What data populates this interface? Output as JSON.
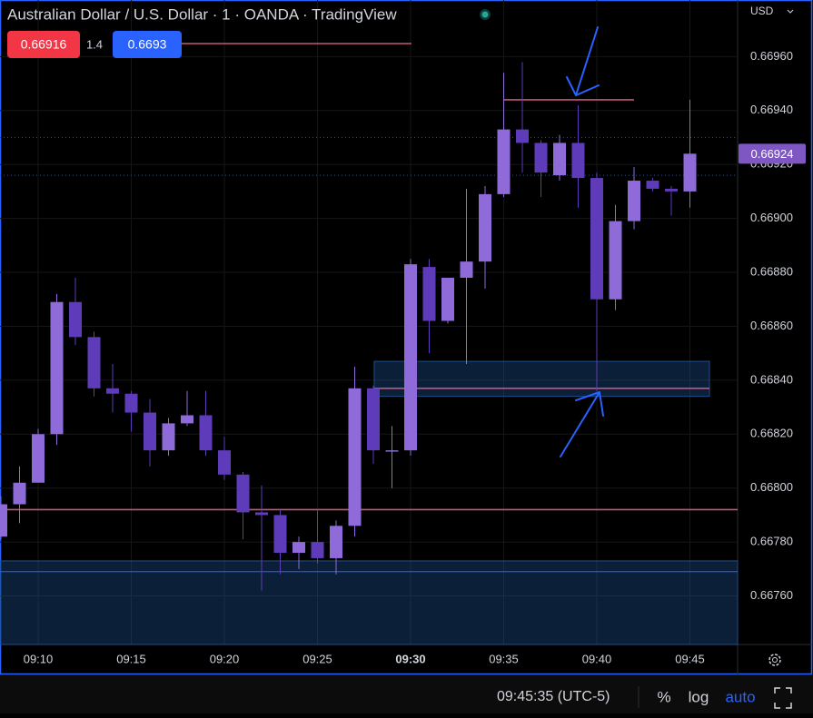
{
  "chart_data": {
    "type": "candlestick",
    "title": "Australian Dollar / U.S. Dollar · 1 · OANDA · TradingView",
    "bid": 0.66916,
    "spread": "1.4",
    "ask": 0.6693,
    "currency": "USD",
    "last": {
      "value": 0.66924,
      "label": "0.66924"
    },
    "categories": [
      "09:08",
      "09:09",
      "09:10",
      "09:11",
      "09:12",
      "09:13",
      "09:14",
      "09:15",
      "09:16",
      "09:17",
      "09:18",
      "09:19",
      "09:20",
      "09:21",
      "09:22",
      "09:23",
      "09:24",
      "09:25",
      "09:26",
      "09:27",
      "09:28",
      "09:29",
      "09:30",
      "09:31",
      "09:32",
      "09:33",
      "09:34",
      "09:35",
      "09:36",
      "09:37",
      "09:38",
      "09:39",
      "09:40",
      "09:41",
      "09:42",
      "09:43",
      "09:44",
      "09:45"
    ],
    "open": [
      0.66782,
      0.66794,
      0.66802,
      0.6682,
      0.66869,
      0.66856,
      0.66837,
      0.66835,
      0.66828,
      0.66814,
      0.66824,
      0.66827,
      0.66814,
      0.66805,
      0.66791,
      0.6679,
      0.66776,
      0.6678,
      0.66774,
      0.66786,
      0.66837,
      0.66814,
      0.66814,
      0.66882,
      0.66862,
      0.66878,
      0.66884,
      0.66909,
      0.66933,
      0.66928,
      0.66916,
      0.66928,
      0.66915,
      0.6687,
      0.66899,
      0.66914,
      0.66911,
      0.6691
    ],
    "high": [
      0.66797,
      0.66808,
      0.66822,
      0.66872,
      0.66878,
      0.66858,
      0.66846,
      0.66836,
      0.66833,
      0.66826,
      0.66836,
      0.66836,
      0.66819,
      0.66806,
      0.66801,
      0.66792,
      0.66782,
      0.66792,
      0.66788,
      0.66845,
      0.66838,
      0.66823,
      0.66885,
      0.66885,
      0.66878,
      0.66911,
      0.66912,
      0.66954,
      0.66958,
      0.66929,
      0.66931,
      0.66942,
      0.66917,
      0.66905,
      0.66919,
      0.66915,
      0.66912,
      0.66944
    ],
    "low": [
      0.66781,
      0.66787,
      0.66802,
      0.66816,
      0.66853,
      0.66834,
      0.66828,
      0.66821,
      0.66808,
      0.66812,
      0.66823,
      0.66812,
      0.66803,
      0.66781,
      0.66762,
      0.66768,
      0.6677,
      0.66772,
      0.66768,
      0.66782,
      0.66809,
      0.668,
      0.66812,
      0.6685,
      0.66861,
      0.66846,
      0.66874,
      0.66908,
      0.66917,
      0.66908,
      0.66914,
      0.66904,
      0.66836,
      0.66866,
      0.66896,
      0.6691,
      0.66901,
      0.66904
    ],
    "close": [
      0.66794,
      0.66802,
      0.6682,
      0.66869,
      0.66856,
      0.66837,
      0.66835,
      0.66828,
      0.66814,
      0.66824,
      0.66827,
      0.66814,
      0.66805,
      0.66791,
      0.6679,
      0.66776,
      0.6678,
      0.66774,
      0.66786,
      0.66837,
      0.66814,
      0.66814,
      0.66883,
      0.66862,
      0.66878,
      0.66884,
      0.66909,
      0.66933,
      0.66928,
      0.66917,
      0.66928,
      0.66915,
      0.6687,
      0.66899,
      0.66914,
      0.66911,
      0.6691,
      0.66924
    ],
    "up_color": "#8e6bd8",
    "down_color": "#5e3bb8",
    "ylim": [
      0.66742,
      0.66981
    ],
    "yticks": [
      {
        "value": 0.6676,
        "label": "0.66760"
      },
      {
        "value": 0.6678,
        "label": "0.66780"
      },
      {
        "value": 0.668,
        "label": "0.66800"
      },
      {
        "value": 0.6682,
        "label": "0.66820"
      },
      {
        "value": 0.6684,
        "label": "0.66840"
      },
      {
        "value": 0.6686,
        "label": "0.66860"
      },
      {
        "value": 0.6688,
        "label": "0.66880"
      },
      {
        "value": 0.669,
        "label": "0.66900"
      },
      {
        "value": 0.6692,
        "label": "0.66920"
      },
      {
        "value": 0.6694,
        "label": "0.66940"
      },
      {
        "value": 0.6696,
        "label": "0.66960"
      }
    ],
    "xticks": [
      "09:10",
      "09:15",
      "09:20",
      "09:25",
      "09:30",
      "09:35",
      "09:40",
      "09:45"
    ],
    "levels": [
      0.66944,
      0.66837,
      0.66792
    ],
    "zones": [
      [
        0.66834,
        0.66847
      ],
      [
        0.66742,
        0.66773
      ]
    ],
    "zone_line": 0.66769,
    "clock": "09:45:35 (UTC-5)",
    "buttons": [
      "%",
      "log",
      "auto"
    ]
  }
}
